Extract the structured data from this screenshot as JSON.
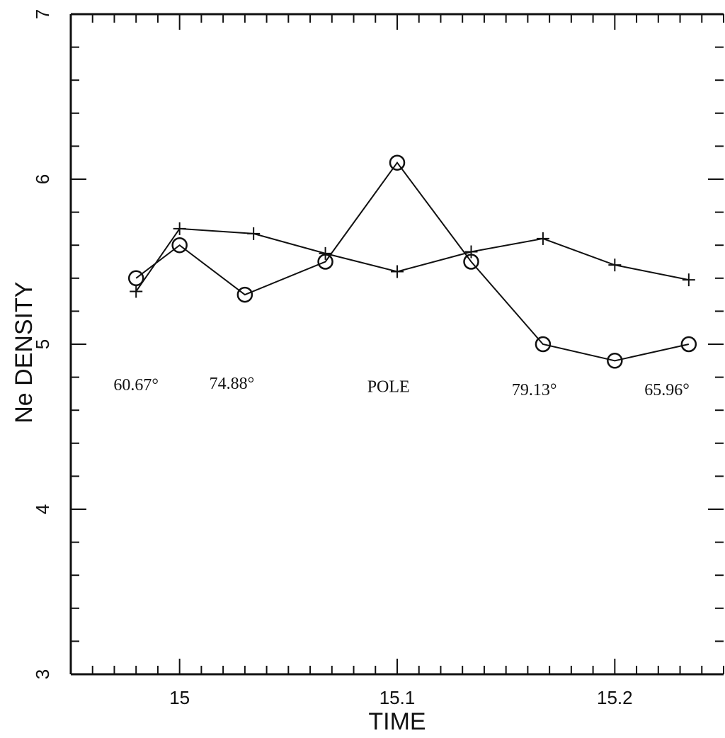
{
  "chart_data": {
    "type": "line",
    "xlabel": "TIME",
    "ylabel": "Ne DENSITY",
    "xlim": [
      14.95,
      15.25
    ],
    "ylim": [
      3,
      7
    ],
    "x_ticks": [
      15,
      15.1,
      15.2
    ],
    "x_tick_labels": [
      "15",
      "15.1",
      "15.2"
    ],
    "y_ticks": [
      3,
      4,
      5,
      6,
      7
    ],
    "y_tick_labels": [
      "3",
      "4",
      "5",
      "6",
      "7"
    ],
    "grid": false,
    "series": [
      {
        "marker": "circle",
        "x": [
          14.98,
          15.0,
          15.03,
          15.067,
          15.1,
          15.134,
          15.167,
          15.2,
          15.234
        ],
        "values": [
          5.4,
          5.6,
          5.3,
          5.5,
          6.1,
          5.5,
          5.0,
          4.9,
          5.0
        ]
      },
      {
        "marker": "plus",
        "x": [
          14.98,
          15.0,
          15.034,
          15.067,
          15.1,
          15.134,
          15.167,
          15.2,
          15.234
        ],
        "values": [
          5.32,
          5.7,
          5.67,
          5.55,
          5.44,
          5.56,
          5.64,
          5.48,
          5.39
        ]
      }
    ],
    "annotations": [
      {
        "text": "60.67°",
        "x": 14.98,
        "y": 4.72
      },
      {
        "text": "74.88°",
        "x": 15.024,
        "y": 4.73
      },
      {
        "text": "POLE",
        "x": 15.096,
        "y": 4.71
      },
      {
        "text": "79.13°",
        "x": 15.163,
        "y": 4.69
      },
      {
        "text": "65.96°",
        "x": 15.224,
        "y": 4.69
      }
    ]
  }
}
